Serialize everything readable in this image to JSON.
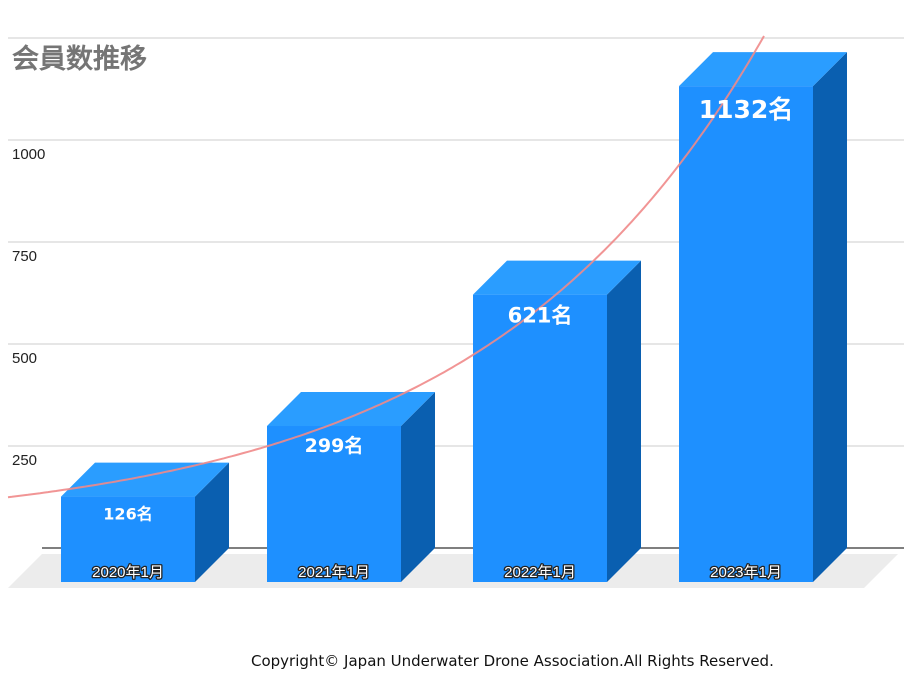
{
  "chart_data": {
    "type": "bar",
    "title": "会員数推移",
    "categories": [
      "2020年1月",
      "2021年1月",
      "2022年1月",
      "2023年1月"
    ],
    "values": [
      126,
      299,
      621,
      1132
    ],
    "data_labels": [
      "126名",
      "299名",
      "621名",
      "1132名"
    ],
    "yticks": [
      "250",
      "500",
      "750",
      "1000"
    ],
    "ytick_values": [
      250,
      500,
      750,
      1000
    ],
    "ylim": [
      0,
      1250
    ],
    "grid": true,
    "trendline": "exponential",
    "colors": {
      "bar_front": "#1e90ff",
      "bar_top": "#2a9dff",
      "bar_side": "#0a5fb0",
      "trendline": "#f08a8a",
      "grid": "#dddddd",
      "floor": "#ececec"
    }
  },
  "footer": {
    "copyright": "Copyright© Japan Underwater Drone Association.All Rights Reserved."
  }
}
